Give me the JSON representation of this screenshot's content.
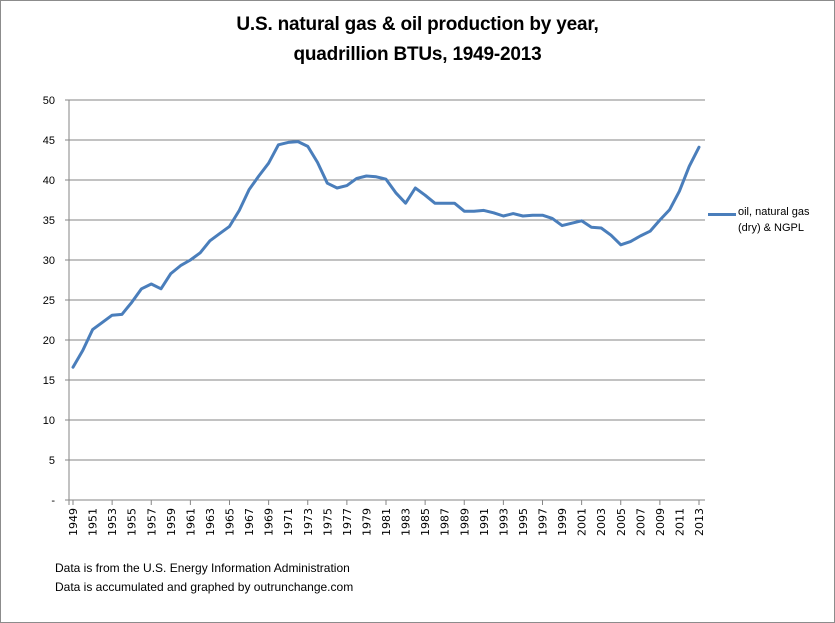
{
  "chart_data": {
    "type": "line",
    "title": "U.S. natural gas & oil production by year,",
    "subtitle": "quadrillion BTUs, 1949-2013",
    "xlabel": "",
    "ylabel": "",
    "ylim": [
      0,
      50
    ],
    "yticks": [
      0,
      5,
      10,
      15,
      20,
      25,
      30,
      35,
      40,
      45,
      50
    ],
    "ytick_labels": [
      "-",
      "5",
      "10",
      "15",
      "20",
      "25",
      "30",
      "35",
      "40",
      "45",
      "50"
    ],
    "grid": "horizontal",
    "legend_position": "right",
    "x": [
      1949,
      1950,
      1951,
      1952,
      1953,
      1954,
      1955,
      1956,
      1957,
      1958,
      1959,
      1960,
      1961,
      1962,
      1963,
      1964,
      1965,
      1966,
      1967,
      1968,
      1969,
      1970,
      1971,
      1972,
      1973,
      1974,
      1975,
      1976,
      1977,
      1978,
      1979,
      1980,
      1981,
      1982,
      1983,
      1984,
      1985,
      1986,
      1987,
      1988,
      1989,
      1990,
      1991,
      1992,
      1993,
      1994,
      1995,
      1996,
      1997,
      1998,
      1999,
      2000,
      2001,
      2002,
      2003,
      2004,
      2005,
      2006,
      2007,
      2008,
      2009,
      2010,
      2011,
      2012,
      2013
    ],
    "xtick_labels": [
      "1949",
      "1951",
      "1953",
      "1955",
      "1957",
      "1959",
      "1961",
      "1963",
      "1965",
      "1967",
      "1969",
      "1971",
      "1973",
      "1975",
      "1977",
      "1979",
      "1981",
      "1983",
      "1985",
      "1987",
      "1989",
      "1991",
      "1993",
      "1995",
      "1997",
      "1999",
      "2001",
      "2003",
      "2005",
      "2007",
      "2009",
      "2011",
      "2013"
    ],
    "series": [
      {
        "name": "oil, natural gas (dry) & NGPL",
        "color": "#4a7ebb",
        "values": [
          16.6,
          18.7,
          21.3,
          22.2,
          23.1,
          23.2,
          24.7,
          26.4,
          27.0,
          26.4,
          28.3,
          29.3,
          30.0,
          30.9,
          32.4,
          33.3,
          34.2,
          36.2,
          38.8,
          40.5,
          42.1,
          44.4,
          44.7,
          44.8,
          44.2,
          42.2,
          39.6,
          39.0,
          39.3,
          40.2,
          40.5,
          40.4,
          40.1,
          38.4,
          37.1,
          39.0,
          38.1,
          37.1,
          37.1,
          37.1,
          36.1,
          36.1,
          36.2,
          35.9,
          35.5,
          35.8,
          35.5,
          35.6,
          35.6,
          35.2,
          34.3,
          34.6,
          34.9,
          34.1,
          34.0,
          33.1,
          31.9,
          32.3,
          33.0,
          33.6,
          35.0,
          36.3,
          38.6,
          41.7,
          44.1
        ]
      }
    ]
  },
  "legend": {
    "label_line1": "oil, natural gas",
    "label_line2": "(dry) & NGPL"
  },
  "notes": {
    "line1": "Data is from the U.S. Energy Information  Administration",
    "line2": "Data is accumulated and graphed by outrunchange.com"
  }
}
